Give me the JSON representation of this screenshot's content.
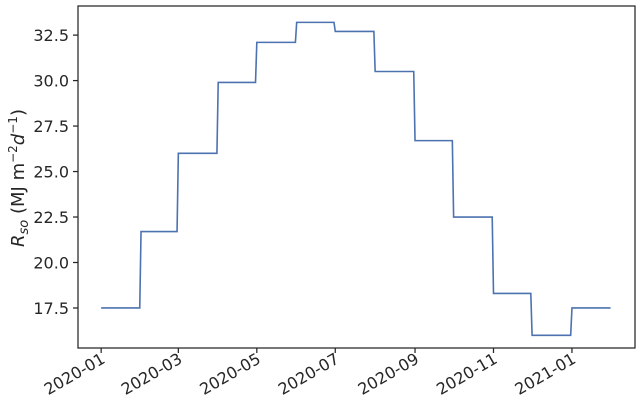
{
  "chart_data": {
    "type": "line",
    "title": "",
    "xlabel": "",
    "ylabel_parts": {
      "symbol": "R",
      "subscript": "so",
      "units_prefix": " (MJ m",
      "exp1": "−2",
      "units_d": "d",
      "exp2": "−1",
      "units_suffix": ")"
    },
    "ylim": [
      15.3,
      34.1
    ],
    "xlim": [
      "2019-12-14",
      "2021-02-19"
    ],
    "yticks": [
      17.5,
      20.0,
      22.5,
      25.0,
      27.5,
      30.0,
      32.5
    ],
    "ytick_labels": [
      "17.5",
      "20.0",
      "22.5",
      "25.0",
      "27.5",
      "30.0",
      "32.5"
    ],
    "xticks": [
      "2020-01-01",
      "2020-03-01",
      "2020-05-01",
      "2020-07-01",
      "2020-09-01",
      "2020-11-01",
      "2021-01-01"
    ],
    "xtick_labels": [
      "2020-01",
      "2020-03",
      "2020-05",
      "2020-07",
      "2020-09",
      "2020-11",
      "2021-01"
    ],
    "line_color": "#4c72b0",
    "grid": false,
    "series": [
      {
        "x": [
          "2020-01-01",
          "2020-01-31",
          "2020-02-01",
          "2020-02-29",
          "2020-03-01",
          "2020-03-31",
          "2020-04-01",
          "2020-04-30",
          "2020-05-01",
          "2020-05-31",
          "2020-06-01",
          "2020-06-30",
          "2020-07-01",
          "2020-07-31",
          "2020-08-01",
          "2020-08-31",
          "2020-09-01",
          "2020-09-30",
          "2020-10-01",
          "2020-10-31",
          "2020-11-01",
          "2020-11-30",
          "2020-12-01",
          "2020-12-31",
          "2021-01-01",
          "2021-01-31"
        ],
        "y": [
          17.5,
          17.5,
          21.7,
          21.7,
          26.0,
          26.0,
          29.9,
          29.9,
          32.1,
          32.1,
          33.2,
          33.2,
          32.7,
          32.7,
          30.5,
          30.5,
          26.7,
          26.7,
          22.5,
          22.5,
          18.3,
          18.3,
          16.0,
          16.0,
          17.5,
          17.5
        ]
      }
    ]
  }
}
